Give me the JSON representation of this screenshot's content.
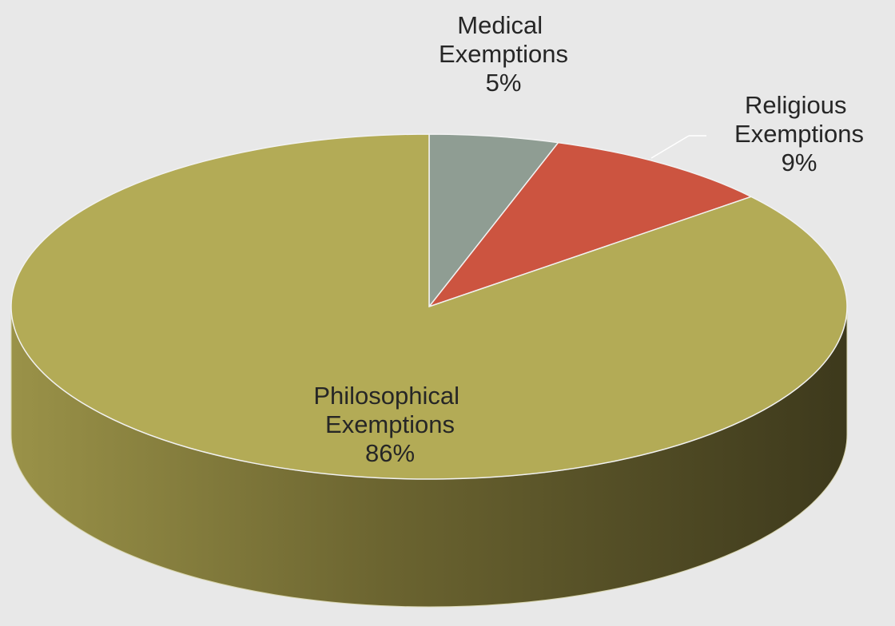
{
  "chart_data": {
    "type": "pie",
    "categories": [
      "Medical Exemptions",
      "Religious Exemptions",
      "Philosophical Exemptions"
    ],
    "values": [
      5,
      9,
      86
    ],
    "value_labels": [
      "5%",
      "9%",
      "86%"
    ],
    "colors": [
      "#8f9d93",
      "#cc5440",
      "#b3ab56"
    ]
  }
}
